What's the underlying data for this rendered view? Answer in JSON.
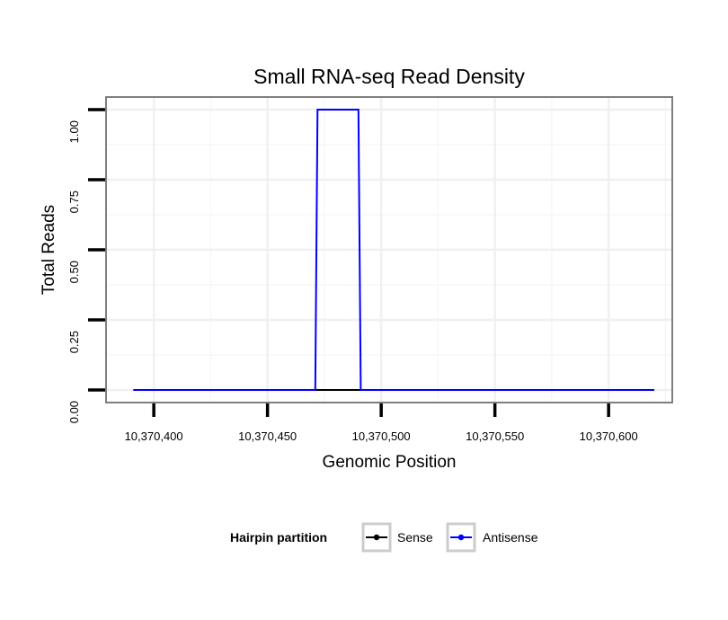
{
  "chart_data": {
    "type": "line",
    "title": "Small RNA-seq Read Density",
    "xlabel": "Genomic Position",
    "ylabel": "Total Reads",
    "xlim": [
      10370379,
      10370628
    ],
    "ylim": [
      -0.045,
      1.045
    ],
    "x_ticks": [
      10370400,
      10370450,
      10370500,
      10370550,
      10370600
    ],
    "x_tick_labels": [
      "10,370,400",
      "10,370,450",
      "10,370,500",
      "10,370,550",
      "10,370,600"
    ],
    "y_ticks": [
      0,
      0.25,
      0.5,
      0.75,
      1.0
    ],
    "y_tick_labels": [
      "0.00",
      "0.25",
      "0.50",
      "0.75",
      "1.00"
    ],
    "grid": true,
    "legend_position": "bottom",
    "legend_title": "Hairpin partition",
    "series": [
      {
        "name": "Sense",
        "color": "#000000",
        "x": [
          10370391,
          10370490,
          10370620
        ],
        "y": [
          0,
          0,
          0
        ]
      },
      {
        "name": "Antisense",
        "color": "#0000ff",
        "x": [
          10370391,
          10370471,
          10370472,
          10370490,
          10370491,
          10370620
        ],
        "y": [
          0,
          0,
          1,
          1,
          0,
          0
        ]
      }
    ]
  }
}
